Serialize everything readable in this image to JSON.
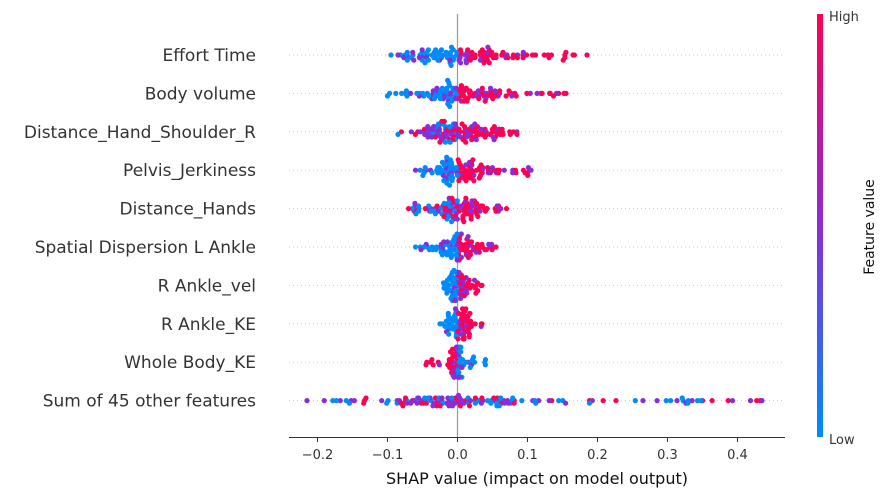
{
  "chart_data": {
    "type": "scatter",
    "subtype": "shap-beeswarm",
    "title": "",
    "xlabel": "SHAP value (impact on model output)",
    "xlim": [
      -0.245,
      0.47
    ],
    "xticks": [
      "−0.2",
      "−0.1",
      "0.0",
      "0.1",
      "0.2",
      "0.3",
      "0.4"
    ],
    "xtick_values": [
      -0.2,
      -0.1,
      0.0,
      0.1,
      0.2,
      0.3,
      0.4
    ],
    "colorbar": {
      "label": "Feature value",
      "high": "High",
      "low": "Low",
      "low_color": "#008bfb",
      "mid_color": "#8a2cd8",
      "high_color": "#ff0052"
    },
    "features": [
      {
        "name": "Effort Time",
        "min": -0.095,
        "max": 0.185,
        "neg_color": "low",
        "pos_color": "high",
        "spread": 0.035,
        "count": 120
      },
      {
        "name": "Body volume",
        "min": -0.1,
        "max": 0.155,
        "neg_color": "low",
        "pos_color": "high",
        "spread": 0.035,
        "count": 120
      },
      {
        "name": "Distance_Hand_Shoulder_R",
        "min": -0.085,
        "max": 0.085,
        "neg_color": "mix",
        "pos_color": "high",
        "spread": 0.035,
        "count": 120
      },
      {
        "name": "Pelvis_Jerkiness",
        "min": -0.06,
        "max": 0.105,
        "neg_color": "low",
        "pos_color": "high",
        "spread": 0.02,
        "count": 110
      },
      {
        "name": "Distance_Hands",
        "min": -0.07,
        "max": 0.07,
        "neg_color": "mix",
        "pos_color": "high",
        "spread": 0.02,
        "count": 100
      },
      {
        "name": "Spatial Dispersion L Ankle",
        "min": -0.06,
        "max": 0.055,
        "neg_color": "low",
        "pos_color": "high",
        "spread": 0.015,
        "count": 90
      },
      {
        "name": "R Ankle_vel",
        "min": -0.02,
        "max": 0.035,
        "neg_color": "low",
        "pos_color": "high",
        "spread": 0.008,
        "count": 70
      },
      {
        "name": "R Ankle_KE",
        "min": -0.025,
        "max": 0.035,
        "neg_color": "low",
        "pos_color": "high",
        "spread": 0.008,
        "count": 70
      },
      {
        "name": "Whole Body_KE",
        "min": -0.045,
        "max": 0.04,
        "neg_color": "high",
        "pos_color": "low",
        "spread": 0.006,
        "count": 70
      },
      {
        "name": "Sum of 45 other features",
        "min": -0.215,
        "max": 0.435,
        "neg_color": "mix",
        "pos_color": "mixlow",
        "spread": 0.06,
        "count": 140
      }
    ]
  }
}
